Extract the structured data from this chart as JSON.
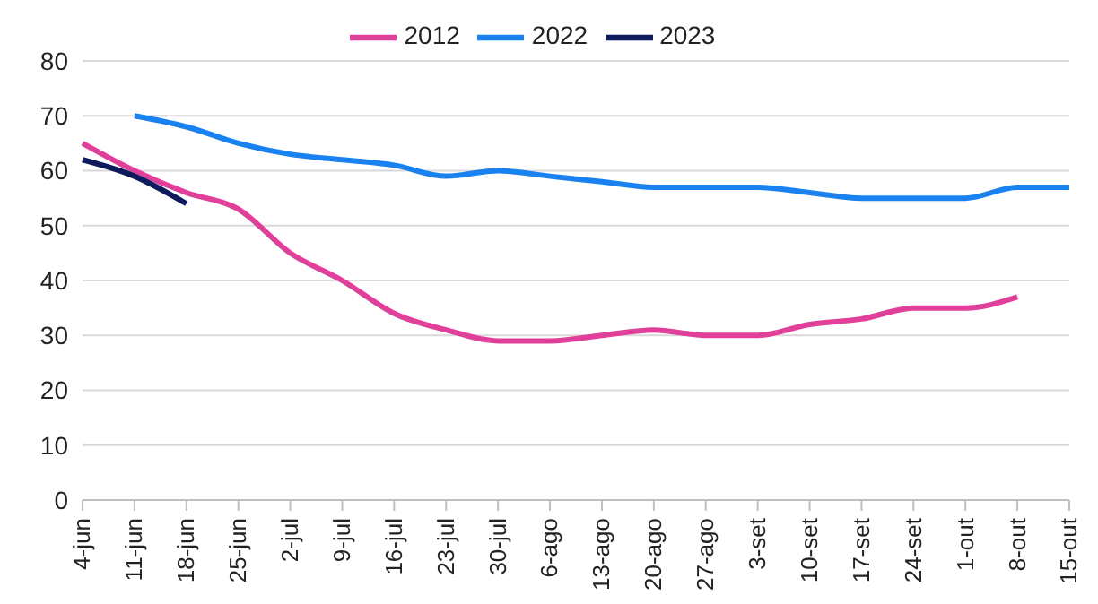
{
  "chart_data": {
    "type": "line",
    "categories": [
      "4-jun",
      "11-jun",
      "18-jun",
      "25-jun",
      "2-jul",
      "9-jul",
      "16-jul",
      "23-jul",
      "30-jul",
      "6-ago",
      "13-ago",
      "20-ago",
      "27-ago",
      "3-set",
      "10-set",
      "17-set",
      "24-set",
      "1-out",
      "8-out",
      "15-out"
    ],
    "series": [
      {
        "name": "2012",
        "color": "#e0409a",
        "values": [
          65,
          60,
          56,
          53,
          45,
          40,
          34,
          31,
          29,
          29,
          30,
          31,
          30,
          30,
          32,
          33,
          35,
          35,
          37,
          null
        ]
      },
      {
        "name": "2022",
        "color": "#1a82f0",
        "values": [
          null,
          70,
          68,
          65,
          63,
          62,
          61,
          59,
          60,
          59,
          58,
          57,
          57,
          57,
          56,
          55,
          55,
          55,
          57,
          57
        ]
      },
      {
        "name": "2023",
        "color": "#0d1a5c",
        "values": [
          62,
          59,
          54,
          null,
          null,
          null,
          null,
          null,
          null,
          null,
          null,
          null,
          null,
          null,
          null,
          null,
          null,
          null,
          null,
          null
        ]
      }
    ],
    "ylim": [
      0,
      80
    ],
    "yticks": [
      0,
      10,
      20,
      30,
      40,
      50,
      60,
      70,
      80
    ],
    "grid": "y",
    "legend": "top",
    "marker": "none",
    "line_style": "solid"
  }
}
